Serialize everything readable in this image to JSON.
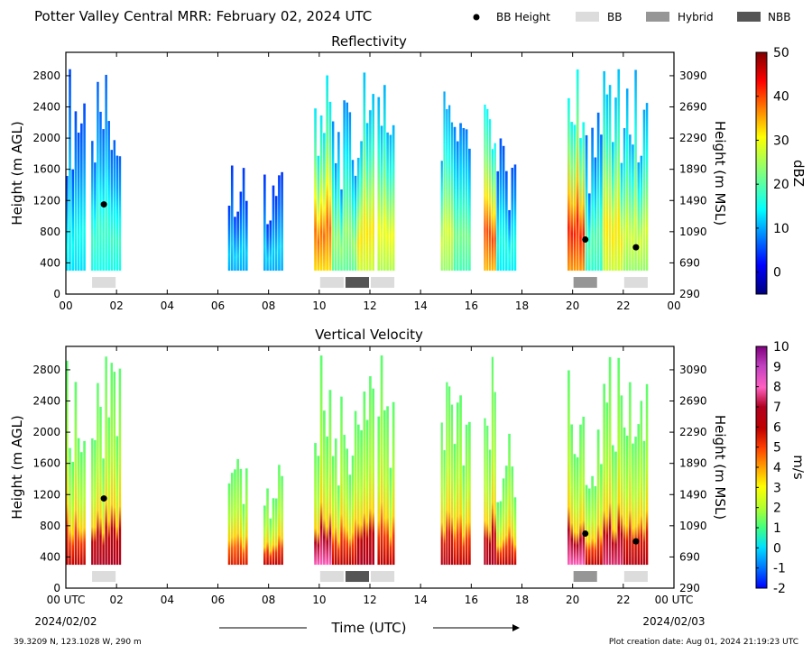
{
  "header": {
    "title": "Potter Valley Central MRR:  February 02, 2024 UTC",
    "legend": [
      {
        "label": "BB Height",
        "kind": "dot",
        "color": "#000000"
      },
      {
        "label": "BB",
        "kind": "box",
        "color": "#dcdcdc"
      },
      {
        "label": "Hybrid",
        "kind": "box",
        "color": "#969696"
      },
      {
        "label": "NBB",
        "kind": "box",
        "color": "#555555"
      }
    ]
  },
  "footer": {
    "location": "39.3209 N, 123.1028 W, 290 m",
    "creation": "Plot creation date: Aug 01, 2024 21:19:23 UTC",
    "xlabel": "Time (UTC)",
    "start_date": "2024/02/02",
    "end_date": "2024/02/03"
  },
  "chart_data": [
    {
      "type": "heatmap",
      "title": "Reflectivity",
      "xlabel": "",
      "ylabel": "Height (m AGL)",
      "ylabel_right": "Height (m MSL)",
      "xlim": [
        0,
        24
      ],
      "ylim": [
        0,
        3100
      ],
      "x_ticks": [
        "00",
        "02",
        "04",
        "06",
        "08",
        "10",
        "12",
        "14",
        "16",
        "18",
        "20",
        "22",
        "00"
      ],
      "y_ticks": [
        0,
        400,
        800,
        1200,
        1600,
        2000,
        2400,
        2800
      ],
      "y_ticks_right": [
        290,
        690,
        1090,
        1490,
        1890,
        2290,
        2690,
        3090
      ],
      "colorbar": {
        "label": "dBZ",
        "min": -5,
        "max": 50,
        "ticks": [
          0,
          10,
          20,
          30,
          40,
          50
        ],
        "scheme": "jet"
      },
      "data_floor": 300,
      "rain_periods": [
        {
          "start": 0.0,
          "end": 0.8,
          "top": 3000,
          "core": 15
        },
        {
          "start": 1.0,
          "end": 2.2,
          "top": 3000,
          "core": 18
        },
        {
          "start": 6.4,
          "end": 7.2,
          "top": 1700,
          "core": 12
        },
        {
          "start": 7.8,
          "end": 8.6,
          "top": 1600,
          "core": 12
        },
        {
          "start": 9.8,
          "end": 10.5,
          "top": 3000,
          "core": 38
        },
        {
          "start": 10.5,
          "end": 11.5,
          "top": 2500,
          "core": 24
        },
        {
          "start": 11.5,
          "end": 12.2,
          "top": 3000,
          "core": 32
        },
        {
          "start": 12.3,
          "end": 13.0,
          "top": 3000,
          "core": 30
        },
        {
          "start": 14.8,
          "end": 15.3,
          "top": 3000,
          "core": 28
        },
        {
          "start": 15.3,
          "end": 16.0,
          "top": 2500,
          "core": 22
        },
        {
          "start": 16.5,
          "end": 17.0,
          "top": 3000,
          "core": 40
        },
        {
          "start": 17.0,
          "end": 17.8,
          "top": 2000,
          "core": 16
        },
        {
          "start": 19.8,
          "end": 20.5,
          "top": 3000,
          "core": 42
        },
        {
          "start": 20.5,
          "end": 21.2,
          "top": 2400,
          "core": 20
        },
        {
          "start": 21.2,
          "end": 22.0,
          "top": 3000,
          "core": 32
        },
        {
          "start": 22.0,
          "end": 23.0,
          "top": 3000,
          "core": 28
        }
      ],
      "bb_height": [
        {
          "x": 1.5,
          "y": 1150
        },
        {
          "x": 20.5,
          "y": 700
        },
        {
          "x": 22.5,
          "y": 600
        }
      ],
      "bb_periods": [
        {
          "start": 1.0,
          "end": 2.0,
          "type": "BB"
        },
        {
          "start": 10.0,
          "end": 11.0,
          "type": "BB"
        },
        {
          "start": 11.0,
          "end": 12.0,
          "type": "NBB"
        },
        {
          "start": 12.0,
          "end": 13.0,
          "type": "BB"
        },
        {
          "start": 20.0,
          "end": 21.0,
          "type": "Hybrid"
        },
        {
          "start": 22.0,
          "end": 23.0,
          "type": "BB"
        }
      ]
    },
    {
      "type": "heatmap",
      "title": "Vertical Velocity",
      "xlabel": "Time (UTC)",
      "ylabel": "Height (m AGL)",
      "ylabel_right": "Height (m MSL)",
      "xlim": [
        0,
        24
      ],
      "ylim": [
        0,
        3100
      ],
      "x_ticks": [
        "00 UTC",
        "02",
        "04",
        "06",
        "08",
        "10",
        "12",
        "14",
        "16",
        "18",
        "20",
        "22",
        "00 UTC"
      ],
      "y_ticks": [
        0,
        400,
        800,
        1200,
        1600,
        2000,
        2400,
        2800
      ],
      "y_ticks_right": [
        290,
        690,
        1090,
        1490,
        1890,
        2290,
        2690,
        3090
      ],
      "colorbar": {
        "label": "m/s",
        "min": -2,
        "max": 10,
        "ticks": [
          -2,
          -1,
          0,
          1,
          2,
          3,
          4,
          5,
          6,
          7,
          8,
          9,
          10
        ],
        "scheme": "velocity"
      },
      "data_floor": 300,
      "rain_periods": [
        {
          "start": 0.0,
          "end": 0.8,
          "top": 3000,
          "core": 6
        },
        {
          "start": 1.0,
          "end": 2.2,
          "top": 3000,
          "core": 7
        },
        {
          "start": 6.4,
          "end": 7.2,
          "top": 1700,
          "core": 5.5
        },
        {
          "start": 7.8,
          "end": 8.6,
          "top": 1600,
          "core": 6
        },
        {
          "start": 9.8,
          "end": 10.5,
          "top": 3000,
          "core": 8
        },
        {
          "start": 10.5,
          "end": 11.5,
          "top": 2500,
          "core": 6
        },
        {
          "start": 11.5,
          "end": 12.2,
          "top": 3000,
          "core": 7
        },
        {
          "start": 12.3,
          "end": 13.0,
          "top": 3000,
          "core": 6
        },
        {
          "start": 14.8,
          "end": 15.3,
          "top": 3000,
          "core": 6.5
        },
        {
          "start": 15.3,
          "end": 16.0,
          "top": 2500,
          "core": 6
        },
        {
          "start": 16.5,
          "end": 17.0,
          "top": 3000,
          "core": 7
        },
        {
          "start": 17.0,
          "end": 17.8,
          "top": 2000,
          "core": 6
        },
        {
          "start": 19.8,
          "end": 20.5,
          "top": 3000,
          "core": 8
        },
        {
          "start": 20.5,
          "end": 21.2,
          "top": 2400,
          "core": 6
        },
        {
          "start": 21.2,
          "end": 22.0,
          "top": 3000,
          "core": 7.5
        },
        {
          "start": 22.0,
          "end": 23.0,
          "top": 3000,
          "core": 6.5
        }
      ],
      "bb_height": [
        {
          "x": 1.5,
          "y": 1150
        },
        {
          "x": 20.5,
          "y": 700
        },
        {
          "x": 22.5,
          "y": 600
        }
      ],
      "bb_periods": [
        {
          "start": 1.0,
          "end": 2.0,
          "type": "BB"
        },
        {
          "start": 10.0,
          "end": 11.0,
          "type": "BB"
        },
        {
          "start": 11.0,
          "end": 12.0,
          "type": "NBB"
        },
        {
          "start": 12.0,
          "end": 13.0,
          "type": "BB"
        },
        {
          "start": 20.0,
          "end": 21.0,
          "type": "Hybrid"
        },
        {
          "start": 22.0,
          "end": 23.0,
          "type": "BB"
        }
      ]
    }
  ]
}
